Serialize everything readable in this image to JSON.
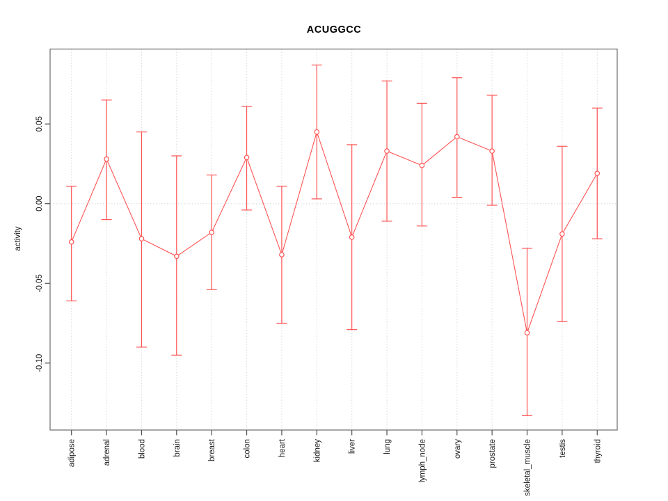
{
  "title": "ACUGGCC",
  "chart_data": {
    "type": "line",
    "subtype": "error-bar-means-plot",
    "title": "ACUGGCC",
    "xlabel": "",
    "ylabel": "activity",
    "categories": [
      "adipose",
      "adrenal",
      "blood",
      "brain",
      "breast",
      "colon",
      "heart",
      "kidney",
      "liver",
      "lung",
      "lymph_node",
      "ovary",
      "prostate",
      "skeletal_muscle",
      "testis",
      "thyroid"
    ],
    "series": [
      {
        "name": "mean activity",
        "values": [
          -0.024,
          0.028,
          -0.022,
          -0.033,
          -0.018,
          0.029,
          -0.032,
          0.045,
          -0.021,
          0.033,
          0.024,
          0.042,
          0.033,
          -0.081,
          -0.019,
          0.019
        ],
        "error_upper": [
          0.011,
          0.065,
          0.045,
          0.03,
          0.018,
          0.061,
          0.011,
          0.087,
          0.037,
          0.077,
          0.063,
          0.079,
          0.068,
          -0.028,
          0.036,
          0.06
        ],
        "error_lower": [
          -0.061,
          -0.01,
          -0.09,
          -0.095,
          -0.054,
          -0.004,
          -0.075,
          0.003,
          -0.079,
          -0.011,
          -0.014,
          0.004,
          -0.001,
          -0.133,
          -0.074,
          -0.022
        ]
      }
    ],
    "yticks": [
      0.05,
      0.0,
      -0.05,
      -0.1
    ],
    "ytick_labels": [
      "0.05",
      "0.00",
      "-0.05",
      "-0.10"
    ],
    "ylim": [
      -0.142,
      0.097
    ],
    "grid": "dotted vertical line at each category; dotted horizontal line at y=0",
    "legend": "none",
    "marker": "open-circle",
    "colors": {
      "series": "#ff5252",
      "grid": "#d9d9d9",
      "box": "#808080",
      "tick": "#4d4d4d",
      "text": "#1a1a1a",
      "background": "#ffffff"
    }
  }
}
